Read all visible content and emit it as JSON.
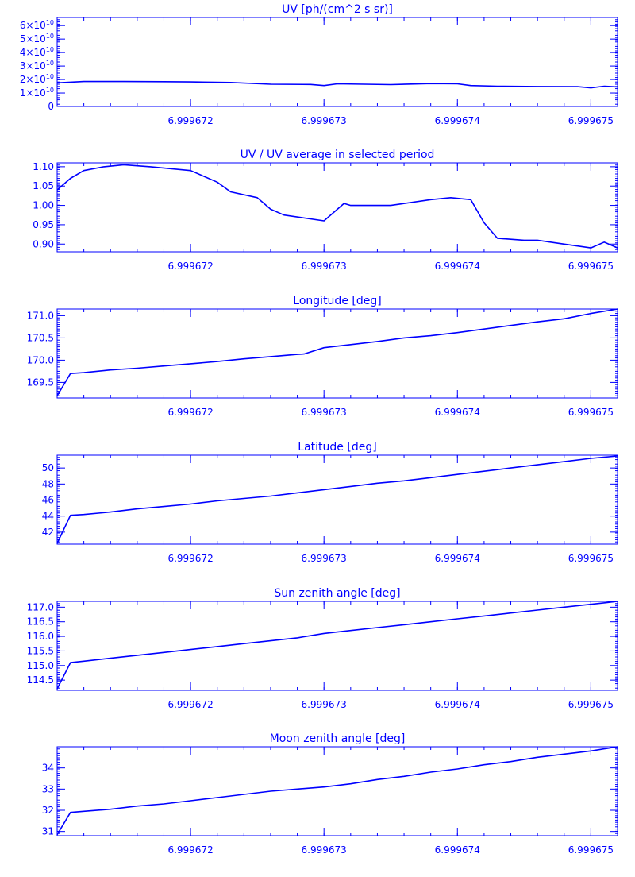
{
  "accent_color": "#0000ff",
  "background_color": "#ffffff",
  "chart_data": [
    {
      "type": "line",
      "title": "UV [ph/(cm^2 s sr)]",
      "xlim": [
        6.999671,
        6.9996752
      ],
      "x_ticks": [
        6.999672,
        6.999673,
        6.999674,
        6.999675
      ],
      "x_tick_labels": [
        "6.999672",
        "6.999673",
        "6.999674",
        "6.999675"
      ],
      "ylim": [
        0,
        66000000000.0
      ],
      "y_ticks": [
        0,
        10000000000.0,
        20000000000.0,
        30000000000.0,
        40000000000.0,
        50000000000.0,
        60000000000.0
      ],
      "y_tick_labels": [
        {
          "m": "0",
          "e": ""
        },
        {
          "m": "1×10",
          "e": "10"
        },
        {
          "m": "2×10",
          "e": "10"
        },
        {
          "m": "3×10",
          "e": "10"
        },
        {
          "m": "4×10",
          "e": "10"
        },
        {
          "m": "5×10",
          "e": "10"
        },
        {
          "m": "6×10",
          "e": "10"
        }
      ],
      "series": [
        {
          "x": [
            6.999671,
            6.9996712,
            6.9996715,
            6.9996718,
            6.999672,
            6.9996723,
            6.9996726,
            6.9996729,
            6.999673,
            6.9996731,
            6.9996735,
            6.9996738,
            6.999674,
            6.9996741,
            6.9996743,
            6.9996746,
            6.9996749,
            6.999675,
            6.9996751,
            6.9996752
          ],
          "y": [
            17500000000.0,
            18500000000.0,
            18500000000.0,
            18400000000.0,
            18200000000.0,
            17800000000.0,
            16500000000.0,
            16300000000.0,
            15500000000.0,
            16800000000.0,
            16200000000.0,
            17000000000.0,
            16800000000.0,
            15500000000.0,
            15000000000.0,
            14800000000.0,
            14700000000.0,
            13800000000.0,
            15000000000.0,
            14500000000.0
          ]
        }
      ]
    },
    {
      "type": "line",
      "title": "UV / UV average in selected period",
      "xlim": [
        6.999671,
        6.9996752
      ],
      "x_ticks": [
        6.999672,
        6.999673,
        6.999674,
        6.999675
      ],
      "x_tick_labels": [
        "6.999672",
        "6.999673",
        "6.999674",
        "6.999675"
      ],
      "ylim": [
        0.88,
        1.11
      ],
      "y_ticks": [
        0.9,
        0.95,
        1.0,
        1.05,
        1.1
      ],
      "y_tick_labels": [
        "0.90",
        "0.95",
        "1.00",
        "1.05",
        "1.10"
      ],
      "series": [
        {
          "x": [
            6.999671,
            6.9996711,
            6.9996712,
            6.99967135,
            6.9996715,
            6.9996717,
            6.999672,
            6.9996722,
            6.9996723,
            6.9996725,
            6.9996726,
            6.9996727,
            6.999673,
            6.99967315,
            6.9996732,
            6.9996735,
            6.9996738,
            6.99967395,
            6.9996741,
            6.9996742,
            6.9996743,
            6.9996745,
            6.9996746,
            6.9996748,
            6.999675,
            6.9996751,
            6.9996752
          ],
          "y": [
            1.04,
            1.07,
            1.09,
            1.1,
            1.105,
            1.1,
            1.09,
            1.06,
            1.035,
            1.02,
            0.99,
            0.975,
            0.96,
            1.005,
            1.0,
            1.0,
            1.015,
            1.02,
            1.015,
            0.955,
            0.915,
            0.91,
            0.91,
            0.9,
            0.89,
            0.905,
            0.89
          ]
        }
      ]
    },
    {
      "type": "line",
      "title": "Longitude [deg]",
      "xlim": [
        6.999671,
        6.9996752
      ],
      "x_ticks": [
        6.999672,
        6.999673,
        6.999674,
        6.999675
      ],
      "x_tick_labels": [
        "6.999672",
        "6.999673",
        "6.999674",
        "6.999675"
      ],
      "ylim": [
        169.15,
        171.15
      ],
      "y_ticks": [
        169.5,
        170.0,
        170.5,
        171.0
      ],
      "y_tick_labels": [
        "169.5",
        "170.0",
        "170.5",
        "171.0"
      ],
      "series": [
        {
          "x": [
            6.999671,
            6.9996711,
            6.9996712,
            6.9996714,
            6.9996716,
            6.9996718,
            6.999672,
            6.9996722,
            6.9996724,
            6.9996726,
            6.9996728,
            6.99967285,
            6.999673,
            6.9996732,
            6.9996734,
            6.9996736,
            6.9996738,
            6.999674,
            6.9996742,
            6.9996744,
            6.9996746,
            6.9996748,
            6.999675,
            6.9996751,
            6.9996752
          ],
          "y": [
            169.2,
            169.7,
            169.72,
            169.78,
            169.82,
            169.87,
            169.92,
            169.97,
            170.03,
            170.08,
            170.13,
            170.14,
            170.28,
            170.35,
            170.42,
            170.5,
            170.55,
            170.62,
            170.7,
            170.78,
            170.86,
            170.93,
            171.05,
            171.1,
            171.15
          ]
        }
      ]
    },
    {
      "type": "line",
      "title": "Latitude [deg]",
      "xlim": [
        6.999671,
        6.9996752
      ],
      "x_ticks": [
        6.999672,
        6.999673,
        6.999674,
        6.999675
      ],
      "x_tick_labels": [
        "6.999672",
        "6.999673",
        "6.999674",
        "6.999675"
      ],
      "ylim": [
        40.5,
        51.6
      ],
      "y_ticks": [
        42,
        44,
        46,
        48,
        50
      ],
      "y_tick_labels": [
        "42",
        "44",
        "46",
        "48",
        "50"
      ],
      "series": [
        {
          "x": [
            6.999671,
            6.9996711,
            6.9996712,
            6.9996714,
            6.9996716,
            6.9996718,
            6.999672,
            6.9996722,
            6.9996724,
            6.9996726,
            6.9996728,
            6.999673,
            6.9996732,
            6.9996734,
            6.9996736,
            6.9996738,
            6.999674,
            6.9996742,
            6.9996744,
            6.9996746,
            6.9996748,
            6.999675,
            6.9996752
          ],
          "y": [
            40.6,
            44.1,
            44.2,
            44.5,
            44.9,
            45.2,
            45.5,
            45.9,
            46.2,
            46.5,
            46.9,
            47.3,
            47.7,
            48.1,
            48.4,
            48.8,
            49.2,
            49.6,
            50.0,
            50.4,
            50.8,
            51.2,
            51.5
          ]
        }
      ]
    },
    {
      "type": "line",
      "title": "Sun zenith angle [deg]",
      "xlim": [
        6.999671,
        6.9996752
      ],
      "x_ticks": [
        6.999672,
        6.999673,
        6.999674,
        6.999675
      ],
      "x_tick_labels": [
        "6.999672",
        "6.999673",
        "6.999674",
        "6.999675"
      ],
      "ylim": [
        114.15,
        117.2
      ],
      "y_ticks": [
        114.5,
        115.0,
        115.5,
        116.0,
        116.5,
        117.0
      ],
      "y_tick_labels": [
        "114.5",
        "115.0",
        "115.5",
        "116.0",
        "116.5",
        "117.0"
      ],
      "series": [
        {
          "x": [
            6.999671,
            6.9996711,
            6.9996712,
            6.9996714,
            6.9996716,
            6.9996718,
            6.999672,
            6.9996722,
            6.9996724,
            6.9996726,
            6.9996728,
            6.999673,
            6.9996732,
            6.9996734,
            6.9996736,
            6.9996738,
            6.999674,
            6.9996742,
            6.9996744,
            6.9996746,
            6.9996748,
            6.999675,
            6.9996752
          ],
          "y": [
            114.2,
            115.1,
            115.15,
            115.25,
            115.35,
            115.45,
            115.55,
            115.65,
            115.75,
            115.85,
            115.95,
            116.1,
            116.2,
            116.3,
            116.4,
            116.5,
            116.6,
            116.7,
            116.8,
            116.9,
            117.0,
            117.1,
            117.2
          ]
        }
      ]
    },
    {
      "type": "line",
      "title": "Moon zenith angle [deg]",
      "xlim": [
        6.999671,
        6.9996752
      ],
      "x_ticks": [
        6.999672,
        6.999673,
        6.999674,
        6.999675
      ],
      "x_tick_labels": [
        "6.999672",
        "6.999673",
        "6.999674",
        "6.999675"
      ],
      "ylim": [
        30.8,
        35.0
      ],
      "y_ticks": [
        31,
        32,
        33,
        34
      ],
      "y_tick_labels": [
        "31",
        "32",
        "33",
        "34"
      ],
      "series": [
        {
          "x": [
            6.999671,
            6.9996711,
            6.9996712,
            6.9996714,
            6.9996716,
            6.9996718,
            6.999672,
            6.9996722,
            6.9996724,
            6.9996726,
            6.9996728,
            6.999673,
            6.9996732,
            6.9996734,
            6.9996736,
            6.9996738,
            6.999674,
            6.9996742,
            6.9996744,
            6.9996746,
            6.9996748,
            6.999675,
            6.9996752
          ],
          "y": [
            30.85,
            31.9,
            31.95,
            32.05,
            32.2,
            32.3,
            32.45,
            32.6,
            32.75,
            32.9,
            33.0,
            33.1,
            33.25,
            33.45,
            33.6,
            33.8,
            33.95,
            34.15,
            34.3,
            34.5,
            34.65,
            34.8,
            35.0
          ]
        }
      ]
    }
  ]
}
